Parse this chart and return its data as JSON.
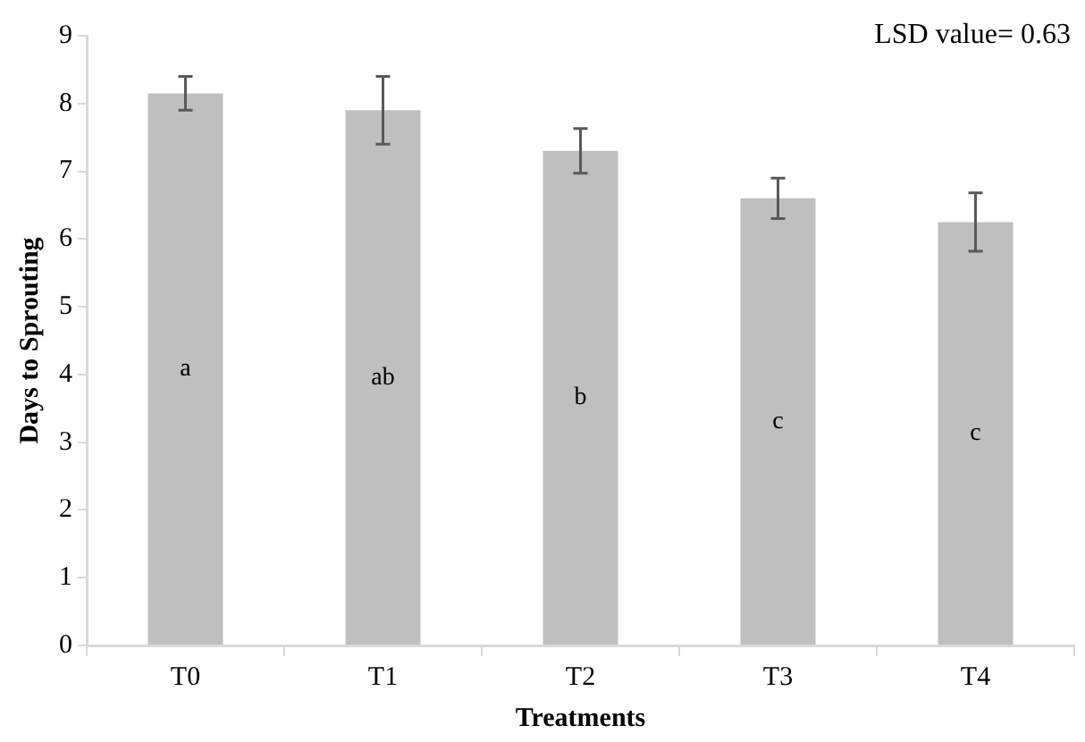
{
  "chart_data": {
    "type": "bar",
    "xlabel": "Treatments",
    "ylabel": "Days to Sprouting",
    "categories": [
      "T0",
      "T1",
      "T2",
      "T3",
      "T4"
    ],
    "values": [
      8.15,
      7.9,
      7.3,
      6.6,
      6.25
    ],
    "errors": [
      0.25,
      0.5,
      0.33,
      0.3,
      0.43
    ],
    "color": "#bfbfbf",
    "ylim": [
      0,
      9
    ],
    "yticks": [
      0,
      1,
      2,
      3,
      4,
      5,
      6,
      7,
      8,
      9
    ],
    "grid": false,
    "legend": false,
    "annotations": [
      "LSD value= 0.63",
      "a",
      "ab",
      "b",
      "c",
      "c"
    ]
  }
}
